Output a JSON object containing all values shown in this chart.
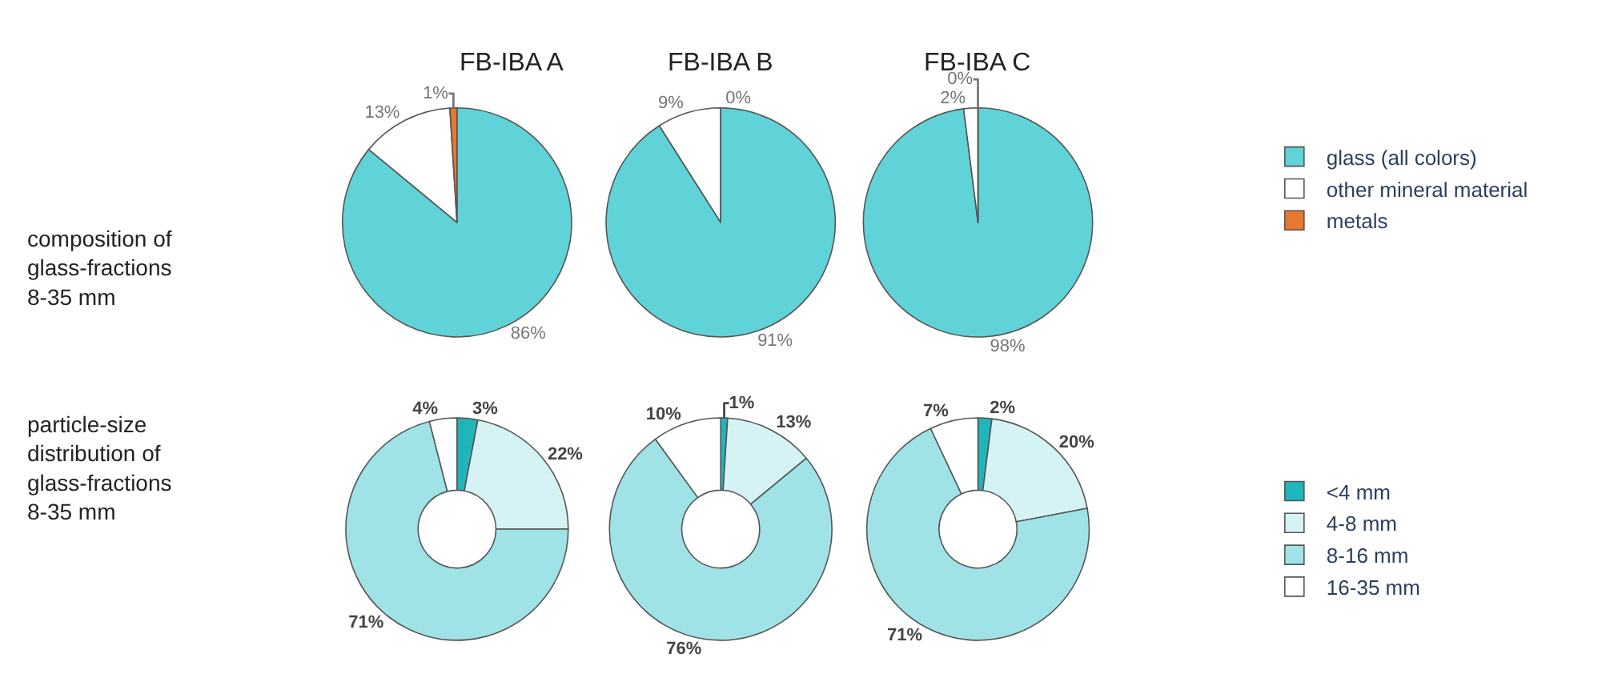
{
  "chart_data": [
    {
      "type": "pie",
      "title": "FB-IBA A",
      "categories": [
        null,
        null,
        null
      ],
      "values": [
        86,
        13,
        1
      ],
      "value_labels": [
        "86%",
        "13%",
        "1%"
      ],
      "colors": [
        "#5fd3d8",
        "#ffffff",
        "#e8782f"
      ],
      "annotations": [
        "composition of glass-fractions 8-35 mm"
      ]
    },
    {
      "type": "pie",
      "title": "FB-IBA B",
      "categories": [
        null,
        null,
        null
      ],
      "values": [
        91,
        9,
        0
      ],
      "value_labels": [
        "91%",
        "9%",
        "0%"
      ],
      "colors": [
        "#5fd3d8",
        "#ffffff",
        "#e8782f"
      ]
    },
    {
      "type": "pie",
      "title": "FB-IBA C",
      "categories": [
        "glass (all colors)",
        "other mineral material",
        "metals"
      ],
      "values": [
        98,
        2,
        0
      ],
      "value_labels": [
        "98%",
        "2%",
        "0%"
      ],
      "colors": [
        "#5fd3d8",
        "#ffffff",
        "#e8782f"
      ],
      "legend": "right"
    },
    {
      "type": "donut",
      "categories": [
        null,
        null,
        null,
        null
      ],
      "values": [
        3,
        22,
        71,
        4
      ],
      "value_labels": [
        "3%",
        "22%",
        "71%",
        "4%"
      ],
      "colors": [
        "#1fb5bb",
        "#d5f3f4",
        "#9fe3e6",
        "#ffffff"
      ],
      "annotations": [
        "particle-size distribution of glass-fractions 8-35 mm"
      ]
    },
    {
      "type": "donut",
      "categories": [
        null,
        null,
        null,
        null
      ],
      "values": [
        1,
        13,
        76,
        10
      ],
      "value_labels": [
        "1%",
        "13%",
        "76%",
        "10%"
      ],
      "colors": [
        "#1fb5bb",
        "#d5f3f4",
        "#9fe3e6",
        "#ffffff"
      ]
    },
    {
      "type": "donut",
      "categories": [
        "<4 mm",
        "4-8 mm",
        "8-16 mm",
        "16-35 mm"
      ],
      "values": [
        2,
        20,
        71,
        7
      ],
      "value_labels": [
        "2%",
        "20%",
        "71%",
        "7%"
      ],
      "colors": [
        "#1fb5bb",
        "#d5f3f4",
        "#9fe3e6",
        "#ffffff"
      ],
      "legend": "right"
    }
  ]
}
